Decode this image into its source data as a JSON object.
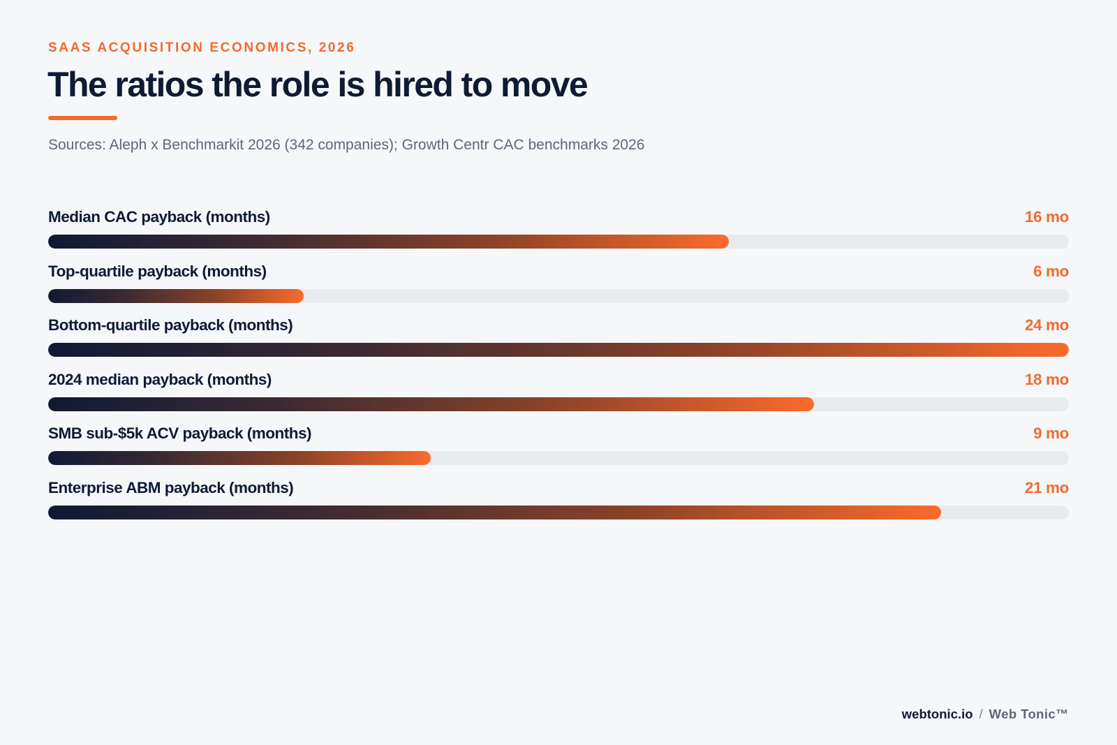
{
  "header": {
    "eyebrow": "SAAS ACQUISITION ECONOMICS, 2026",
    "title": "The ratios the role is hired to move",
    "sources": "Sources: Aleph x Benchmarkit 2026 (342 companies); Growth Centr CAC benchmarks 2026"
  },
  "chart_data": {
    "type": "bar",
    "orientation": "horizontal",
    "title": "The ratios the role is hired to move",
    "unit": "mo",
    "xlim": [
      0,
      24
    ],
    "grid": false,
    "legend": "none",
    "categories": [
      "Median CAC payback (months)",
      "Top-quartile payback (months)",
      "Bottom-quartile payback (months)",
      "2024 median payback (months)",
      "SMB sub-$5k ACV payback (months)",
      "Enterprise ABM payback (months)"
    ],
    "values": [
      16,
      6,
      24,
      18,
      9,
      21
    ],
    "value_labels": [
      "16 mo",
      "6 mo",
      "24 mo",
      "18 mo",
      "9 mo",
      "21 mo"
    ],
    "colors": {
      "bar_start": "#0f1a33",
      "bar_end": "#fb6a2c",
      "track": "#e8eaee",
      "value_text": "#ef6b2e"
    }
  },
  "footer": {
    "site": "webtonic.io",
    "separator": "/",
    "brand": "Web Tonic™"
  }
}
